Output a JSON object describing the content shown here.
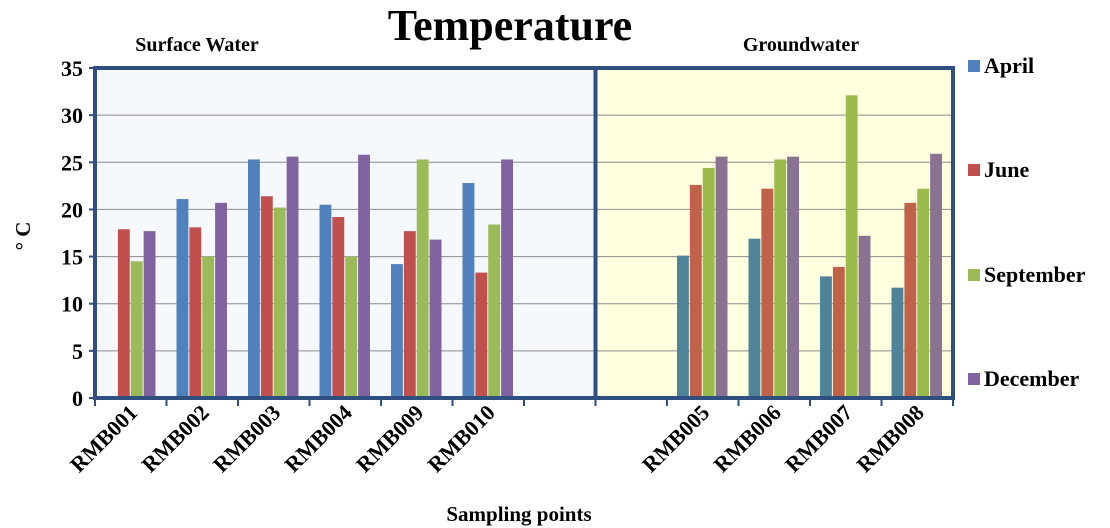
{
  "chart_data": {
    "type": "bar",
    "title": "Temperature",
    "xlabel": "Sampling points",
    "ylabel": "° C",
    "ylim": [
      0,
      35
    ],
    "yticks": [
      0,
      5,
      10,
      15,
      20,
      25,
      30,
      35
    ],
    "regions": [
      {
        "label": "Surface Water",
        "fill": "#f5f8fc"
      },
      {
        "label": "Groundwater",
        "fill": "#ffffe0"
      }
    ],
    "categories": [
      "RMB001",
      "RMB002",
      "RMB003",
      "RMB004",
      "RMB009",
      "RMB010",
      "",
      "",
      "RMB005",
      "RMB006",
      "RMB007",
      "RMB008"
    ],
    "series": [
      {
        "name": "April",
        "color": "#4f81bd",
        "gw_color": "#4f8399",
        "values": [
          null,
          21.1,
          25.3,
          20.5,
          14.2,
          22.8,
          null,
          null,
          15.1,
          16.9,
          12.9,
          11.7
        ]
      },
      {
        "name": "June",
        "color": "#c0504d",
        "gw_color": "#c0614a",
        "values": [
          17.9,
          18.1,
          21.4,
          19.2,
          17.7,
          13.3,
          null,
          null,
          22.6,
          22.2,
          13.9,
          20.7
        ]
      },
      {
        "name": "September",
        "color": "#9bbb59",
        "gw_color": "#9bbb4c",
        "values": [
          14.5,
          15.0,
          20.2,
          15.0,
          25.3,
          18.4,
          null,
          null,
          24.4,
          25.3,
          32.1,
          22.2
        ]
      },
      {
        "name": "December",
        "color": "#8064a2",
        "gw_color": "#8a7292",
        "values": [
          17.7,
          20.7,
          25.6,
          25.8,
          16.8,
          25.3,
          null,
          null,
          25.6,
          25.6,
          17.2,
          25.9
        ]
      }
    ],
    "grid": true,
    "legend": "right",
    "divider_after_index": 7
  }
}
